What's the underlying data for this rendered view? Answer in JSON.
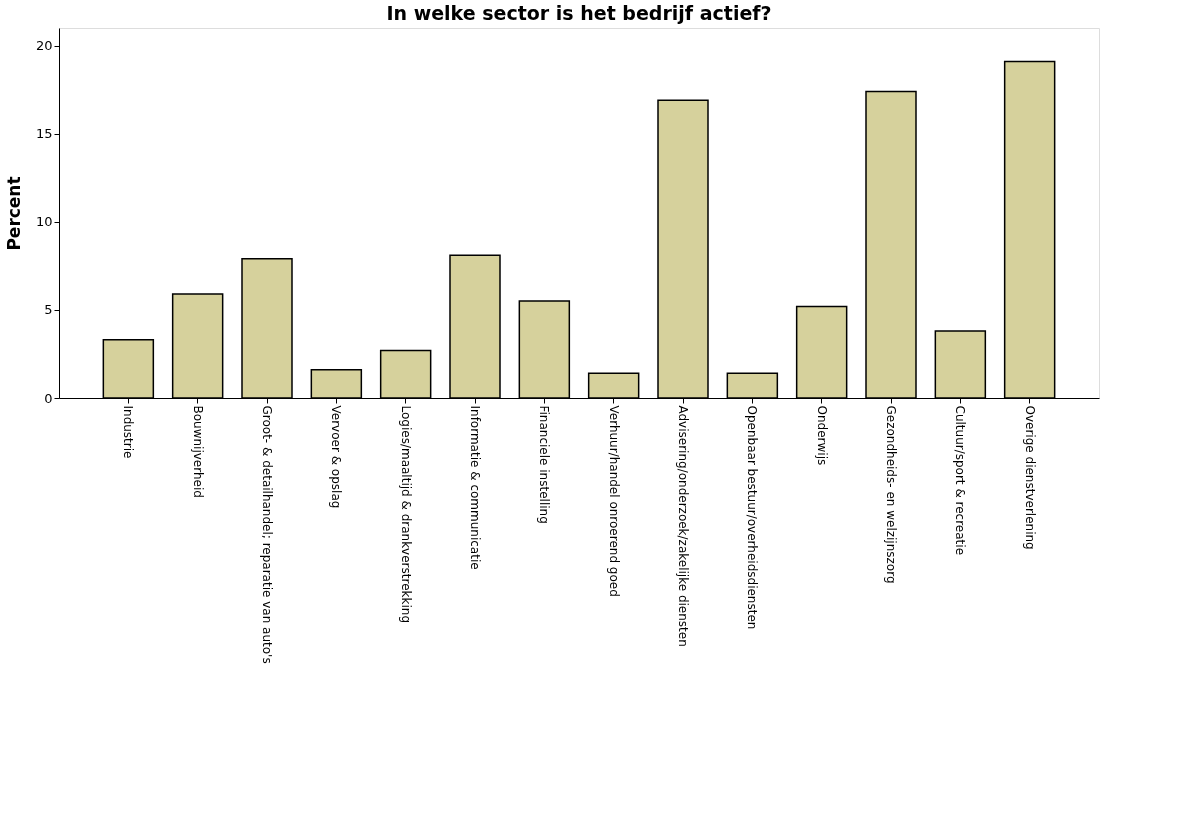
{
  "chart_data": {
    "type": "bar",
    "title": "In welke sector is het bedrijf actief?",
    "ylabel": "Percent",
    "categories": [
      "Industrie",
      "Bouwnijverheid",
      "Groot- & detailhandel; reparatie van auto's",
      "Vervoer & opslag",
      "Logies/maaltijd & drankverstrekking",
      "Informatie & communicatie",
      "Financiele instelling",
      "Verhuur/handel onroerend goed",
      "Advisering/onderzoek/zakelijke diensten",
      "Openbaar bestuur/overheidsdiensten",
      "Onderwijs",
      "Gezondheids- en welzijnszorg",
      "Cultuur/sport & recreatie",
      "Overige dienstverlening"
    ],
    "values": [
      3.3,
      5.9,
      7.9,
      1.6,
      2.7,
      8.1,
      5.5,
      1.4,
      16.9,
      1.4,
      5.2,
      17.4,
      3.8,
      19.1
    ],
    "color": "#d6d19c",
    "ylim": [
      0,
      21
    ],
    "yticks": [
      0,
      5,
      10,
      15,
      20
    ],
    "grid": false
  }
}
